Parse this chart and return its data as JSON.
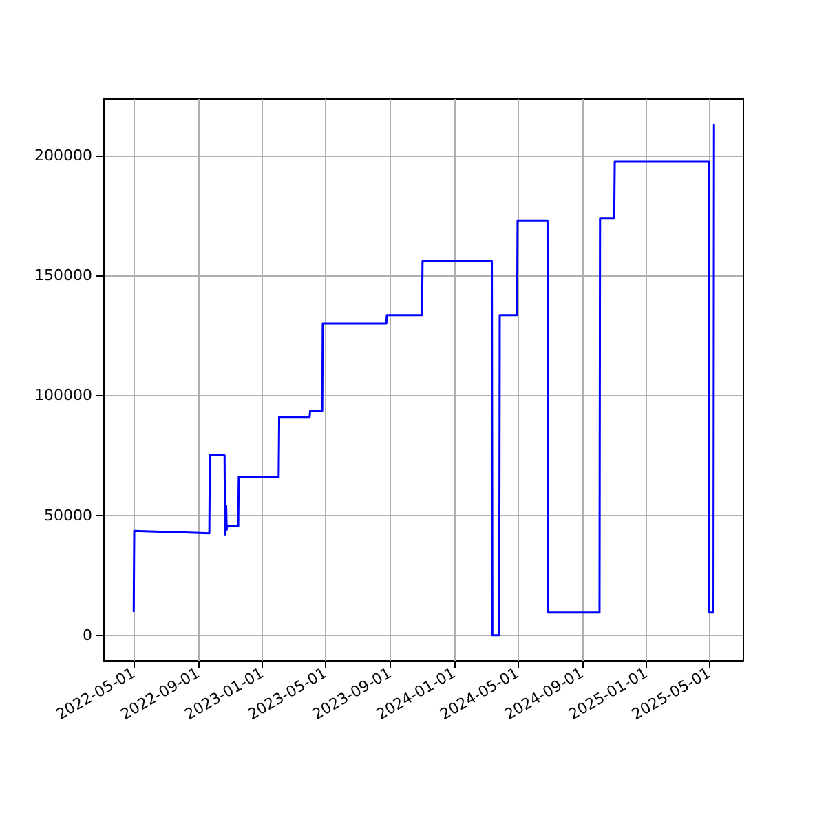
{
  "chart_data": {
    "type": "line",
    "grid": true,
    "marker": "none",
    "line_style": "solid",
    "x": [
      "2022-05-01",
      "2022-05-02",
      "2022-09-22",
      "2022-09-23",
      "2022-10-21",
      "2022-10-22",
      "2022-10-24",
      "2022-10-25",
      "2022-10-26",
      "2022-11-16",
      "2022-11-17",
      "2023-02-01",
      "2023-02-02",
      "2023-04-01",
      "2023-04-02",
      "2023-04-25",
      "2023-04-26",
      "2023-08-25",
      "2023-08-26",
      "2023-11-01",
      "2023-11-02",
      "2024-03-13",
      "2024-03-14",
      "2024-03-27",
      "2024-03-28",
      "2024-04-30",
      "2024-05-01",
      "2024-06-27",
      "2024-06-28",
      "2024-10-04",
      "2024-10-05",
      "2024-11-01",
      "2024-11-02",
      "2025-04-30",
      "2025-05-01",
      "2025-05-09",
      "2025-05-10"
    ],
    "series": [
      {
        "color": "#0000ff",
        "values": [
          10000,
          43500,
          42500,
          75000,
          75000,
          42000,
          54000,
          44000,
          45500,
          45500,
          66000,
          66000,
          91000,
          91000,
          93500,
          93500,
          130000,
          130000,
          133500,
          133500,
          156000,
          156000,
          0,
          0,
          133500,
          133500,
          173000,
          173000,
          9500,
          9500,
          174000,
          174000,
          197500,
          197500,
          9500,
          9500,
          213000
        ]
      }
    ],
    "xlim": [
      "2022-03-04",
      "2025-07-05"
    ],
    "xticks": [
      "2022-05-01",
      "2022-09-01",
      "2023-01-01",
      "2023-05-01",
      "2023-09-01",
      "2024-01-01",
      "2024-05-01",
      "2024-09-01",
      "2025-01-01",
      "2025-05-01"
    ],
    "ylim": [
      -10700,
      223600
    ],
    "yticks": [
      0,
      50000,
      100000,
      150000,
      200000
    ]
  }
}
